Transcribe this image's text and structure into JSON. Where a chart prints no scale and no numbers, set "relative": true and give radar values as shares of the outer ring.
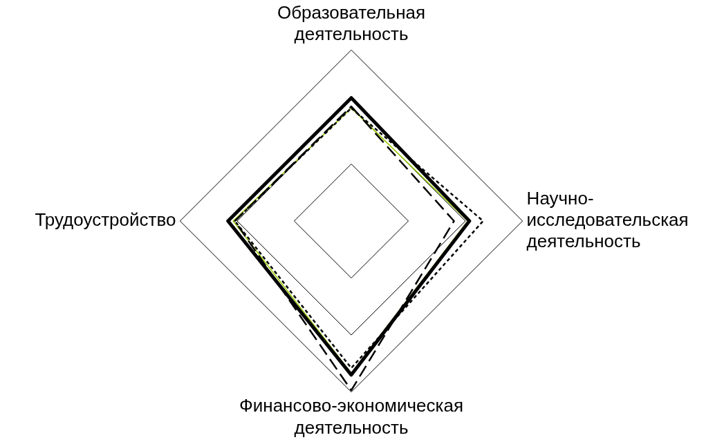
{
  "chart_data": {
    "type": "radar",
    "relative": true,
    "grid": true,
    "legend": false,
    "marker": "none",
    "categories": [
      "Образовательная\nдеятельность",
      "Научно-\nисследовательская\nдеятельность",
      "Финансово-экономическая\nдеятельность",
      "Трудоустройство"
    ],
    "series": [
      {
        "color": "#000000",
        "line_style": "solid",
        "values": [
          0.72,
          0.69,
          0.9,
          0.72
        ]
      },
      {
        "color": "#000000",
        "line_style": "dashed",
        "values": [
          0.67,
          0.6,
          0.99,
          0.68
        ]
      },
      {
        "color": "#000000",
        "line_style": "dotted",
        "values": [
          0.66,
          0.77,
          0.86,
          0.68
        ]
      },
      {
        "color": "#99cc00",
        "line_style": "solid",
        "values": [
          0.66,
          0.68,
          0.89,
          0.69
        ]
      }
    ]
  }
}
